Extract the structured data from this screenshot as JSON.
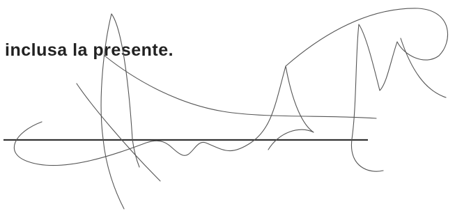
{
  "document": {
    "text": "inclusa la presente."
  }
}
